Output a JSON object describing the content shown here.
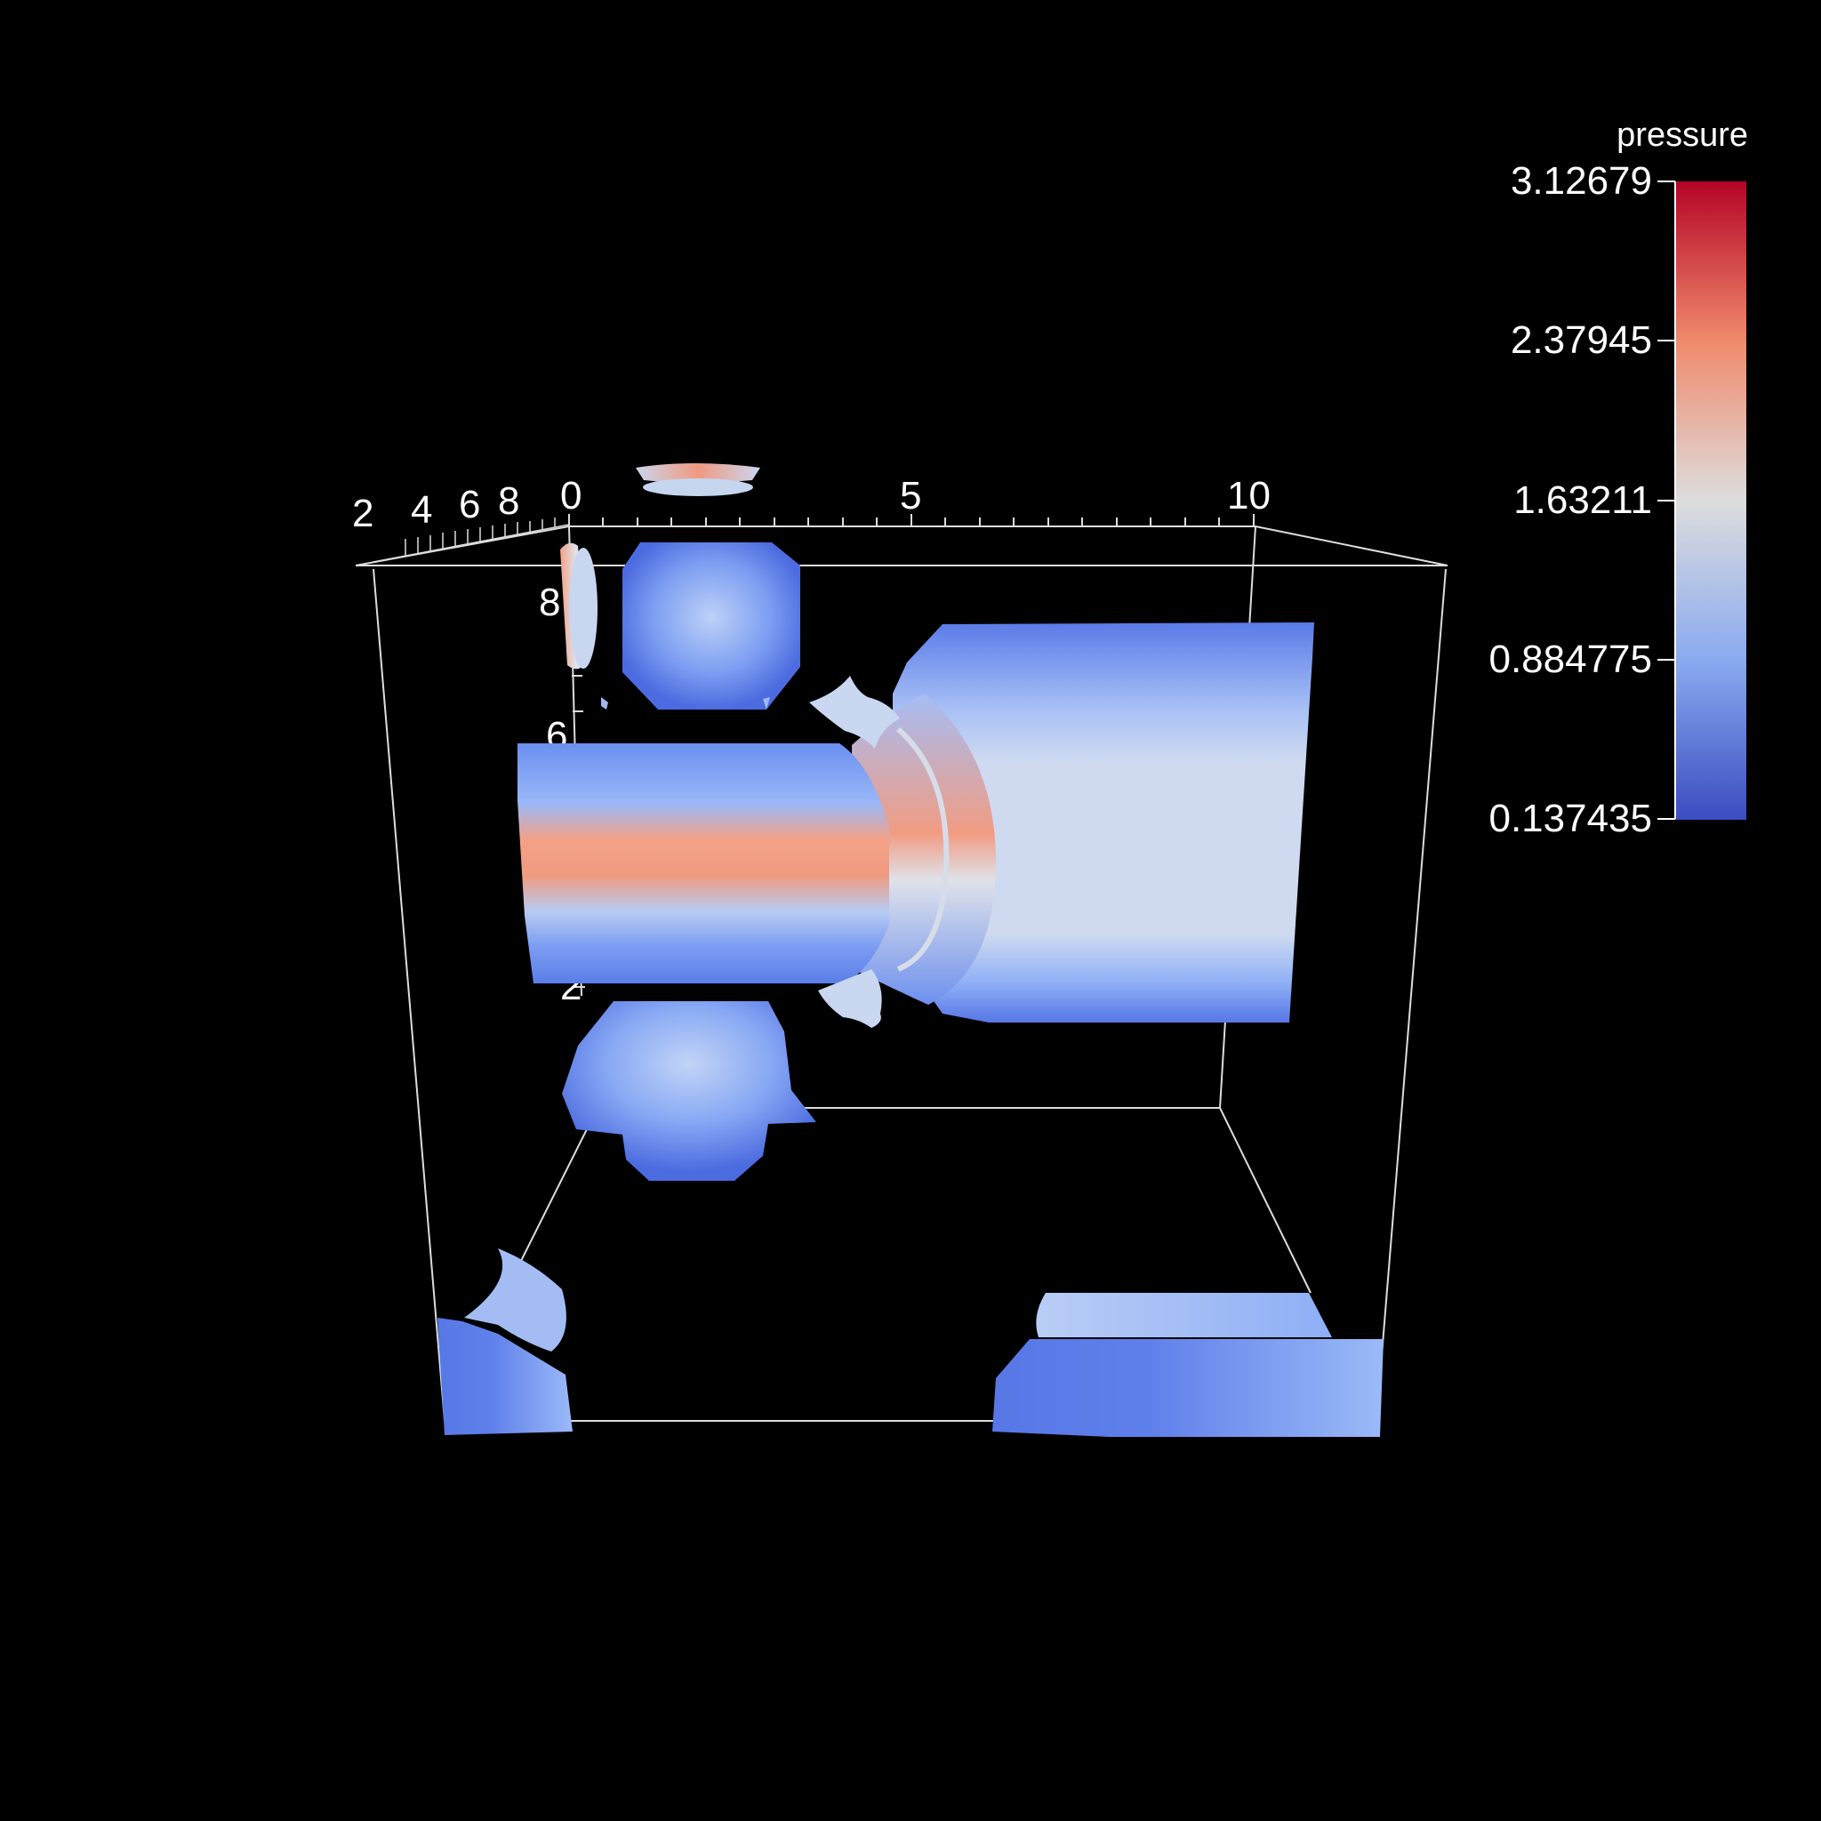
{
  "legend": {
    "title": "pressure",
    "values": [
      "3.12679",
      "2.37945",
      "1.63211",
      "0.884775",
      "0.137435"
    ],
    "colors": {
      "max": "#b40426",
      "upper": "#f08a6c",
      "mid": "#dddddd",
      "lower": "#8aaaf0",
      "min": "#3b4cc0"
    }
  },
  "axes": {
    "x_ticks": [
      "0",
      "5",
      "10"
    ],
    "z_ticks": [
      "2",
      "4",
      "6",
      "8"
    ],
    "y_ticks": [
      "8",
      "6",
      "2"
    ]
  }
}
